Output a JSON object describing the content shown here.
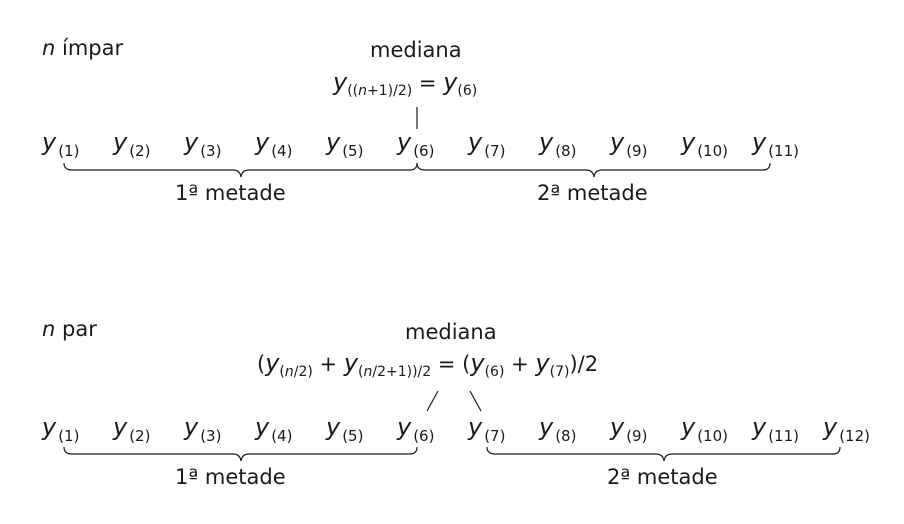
{
  "odd": {
    "title_var": "n",
    "title_word": "ímpar",
    "median_label": "mediana",
    "formula": {
      "var": "y",
      "sub_open": "((",
      "sub_n": "n",
      "sub_rest": "+1)/2)",
      "eq": "=",
      "rhs_var": "y",
      "rhs_sub": "(6)"
    },
    "terms": [
      {
        "var": "y",
        "sub": "(1)"
      },
      {
        "var": "y",
        "sub": "(2)"
      },
      {
        "var": "y",
        "sub": "(3)"
      },
      {
        "var": "y",
        "sub": "(4)"
      },
      {
        "var": "y",
        "sub": "(5)"
      },
      {
        "var": "y",
        "sub": "(6)"
      },
      {
        "var": "y",
        "sub": "(7)"
      },
      {
        "var": "y",
        "sub": "(8)"
      },
      {
        "var": "y",
        "sub": "(9)"
      },
      {
        "var": "y",
        "sub": "(10)"
      },
      {
        "var": "y",
        "sub": "(11)"
      }
    ],
    "half1": "1ª metade",
    "half2": "2ª metade"
  },
  "even": {
    "title_var": "n",
    "title_word": "par",
    "median_label": "mediana",
    "formula": {
      "open": "(",
      "var1": "y",
      "sub1_open": "(",
      "sub1_n": "n",
      "sub1_rest": "/2)",
      "plus": "+",
      "var2": "y",
      "sub2_open": "(",
      "sub2_n": "n",
      "sub2_rest": "/2+1))/2",
      "eq": "=",
      "rhs_open": "(",
      "rhs_var1": "y",
      "rhs_sub1": "(6)",
      "rhs_plus": "+",
      "rhs_var2": "y",
      "rhs_sub2": "(7)",
      "rhs_close": ")/2"
    },
    "terms": [
      {
        "var": "y",
        "sub": "(1)"
      },
      {
        "var": "y",
        "sub": "(2)"
      },
      {
        "var": "y",
        "sub": "(3)"
      },
      {
        "var": "y",
        "sub": "(4)"
      },
      {
        "var": "y",
        "sub": "(5)"
      },
      {
        "var": "y",
        "sub": "(6)"
      },
      {
        "var": "y",
        "sub": "(7)"
      },
      {
        "var": "y",
        "sub": "(8)"
      },
      {
        "var": "y",
        "sub": "(9)"
      },
      {
        "var": "y",
        "sub": "(10)"
      },
      {
        "var": "y",
        "sub": "(11)"
      },
      {
        "var": "y",
        "sub": "(12)"
      }
    ],
    "half1": "1ª metade",
    "half2": "2ª metade"
  }
}
